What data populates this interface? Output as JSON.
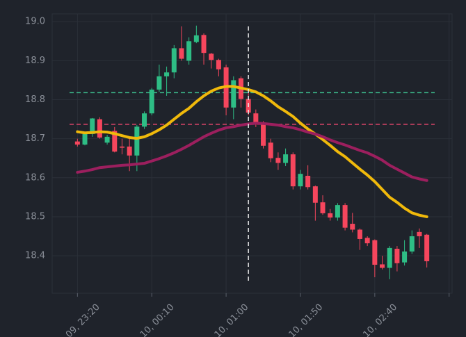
{
  "chart_data": {
    "type": "candlestick",
    "x": [
      0,
      5,
      10,
      15,
      20,
      25,
      30,
      35,
      40,
      45,
      50,
      55,
      60,
      65,
      70,
      75,
      80,
      85,
      90,
      95,
      100,
      105,
      110,
      115,
      120,
      125,
      130,
      135,
      140,
      145,
      150,
      155,
      160,
      165,
      170,
      175,
      180,
      185,
      190,
      195,
      200,
      205,
      210,
      215,
      220,
      225,
      230,
      235
    ],
    "open": [
      18.693,
      18.685,
      18.712,
      18.75,
      18.69,
      18.72,
      18.68,
      18.68,
      18.657,
      18.731,
      18.765,
      18.826,
      18.86,
      18.87,
      18.932,
      18.9,
      18.948,
      18.966,
      18.918,
      18.902,
      18.883,
      18.78,
      18.855,
      18.802,
      18.765,
      18.74,
      18.69,
      18.651,
      18.638,
      18.66,
      18.578,
      18.605,
      18.578,
      18.537,
      18.509,
      18.498,
      18.53,
      18.482,
      18.467,
      18.446,
      18.44,
      18.378,
      18.369,
      18.418,
      18.383,
      18.411,
      18.461,
      18.454
    ],
    "high": [
      18.7,
      18.715,
      18.753,
      18.755,
      18.71,
      18.73,
      18.7,
      18.7,
      18.735,
      18.77,
      18.83,
      18.89,
      18.885,
      18.94,
      18.988,
      18.96,
      18.99,
      18.97,
      18.92,
      18.905,
      18.89,
      18.86,
      18.86,
      18.82,
      18.775,
      18.745,
      18.7,
      18.665,
      18.675,
      18.665,
      18.62,
      18.632,
      18.58,
      18.555,
      18.52,
      18.535,
      18.535,
      18.51,
      18.47,
      18.45,
      18.442,
      18.4,
      18.425,
      18.425,
      18.44,
      18.465,
      18.47,
      18.456
    ],
    "low": [
      18.68,
      18.683,
      18.705,
      18.7,
      18.685,
      18.665,
      18.66,
      18.617,
      18.617,
      18.725,
      18.76,
      18.82,
      18.81,
      18.855,
      18.9,
      18.89,
      18.945,
      18.89,
      18.88,
      18.86,
      18.76,
      18.75,
      18.78,
      18.76,
      18.73,
      18.675,
      18.64,
      18.62,
      18.63,
      18.57,
      18.57,
      18.57,
      18.49,
      18.505,
      18.49,
      18.49,
      18.465,
      18.46,
      18.415,
      18.425,
      18.345,
      18.365,
      18.34,
      18.36,
      18.375,
      18.405,
      18.42,
      18.37
    ],
    "close": [
      18.685,
      18.712,
      18.752,
      18.703,
      18.705,
      18.667,
      18.677,
      18.657,
      18.731,
      18.765,
      18.826,
      18.86,
      18.87,
      18.932,
      18.905,
      18.95,
      18.965,
      18.92,
      18.902,
      18.878,
      18.78,
      18.85,
      18.802,
      18.767,
      18.74,
      18.682,
      18.65,
      18.638,
      18.66,
      18.578,
      18.61,
      18.576,
      18.536,
      18.509,
      18.498,
      18.53,
      18.472,
      18.467,
      18.443,
      18.432,
      18.377,
      18.369,
      18.42,
      18.381,
      18.411,
      18.45,
      18.45,
      18.386
    ],
    "up_color": "#2ebd85",
    "down_color": "#f6465d",
    "series": [
      {
        "color": "#f0b90b",
        "values": [
          18.718,
          18.715,
          18.716,
          18.718,
          18.717,
          18.713,
          18.708,
          18.703,
          18.701,
          18.705,
          18.713,
          18.723,
          18.735,
          18.75,
          18.765,
          18.778,
          18.795,
          18.81,
          18.822,
          18.83,
          18.834,
          18.834,
          18.83,
          18.826,
          18.82,
          18.81,
          18.797,
          18.782,
          18.77,
          18.757,
          18.74,
          18.725,
          18.712,
          18.698,
          18.683,
          18.667,
          18.654,
          18.638,
          18.622,
          18.607,
          18.59,
          18.57,
          18.55,
          18.537,
          18.522,
          18.51,
          18.504,
          18.5
        ]
      },
      {
        "color": "#9c1f5e",
        "values": [
          18.614,
          18.617,
          18.621,
          18.626,
          18.628,
          18.63,
          18.632,
          18.633,
          18.635,
          18.637,
          18.643,
          18.649,
          18.656,
          18.664,
          18.673,
          18.683,
          18.694,
          18.705,
          18.714,
          18.722,
          18.728,
          18.731,
          18.735,
          18.738,
          18.74,
          18.739,
          18.737,
          18.735,
          18.731,
          18.728,
          18.723,
          18.717,
          18.712,
          18.705,
          18.697,
          18.69,
          18.684,
          18.677,
          18.67,
          18.664,
          18.655,
          18.645,
          18.632,
          18.622,
          18.612,
          18.602,
          18.597,
          18.593
        ]
      }
    ],
    "hlines": [
      {
        "value": 18.818,
        "color": "#3dbf8f"
      },
      {
        "value": 18.737,
        "color": "#e0466b"
      }
    ],
    "vline": {
      "x": 115,
      "color": "#e6e6e6"
    },
    "xlim": [
      -17,
      252
    ],
    "xticks": [
      {
        "value": 0,
        "label": "09, 23:20"
      },
      {
        "value": 50,
        "label": "10, 00:10"
      },
      {
        "value": 100,
        "label": "10, 01:00"
      },
      {
        "value": 150,
        "label": "10, 01:50"
      },
      {
        "value": 200,
        "label": "10, 02:40"
      },
      {
        "value": 250,
        "label": null
      }
    ],
    "ylim": [
      18.304,
      19.02
    ],
    "yticks": [
      18.4,
      18.5,
      18.6,
      18.7,
      18.8,
      18.9,
      {
        "value": 19,
        "label": "19.0"
      }
    ],
    "grid": true
  }
}
